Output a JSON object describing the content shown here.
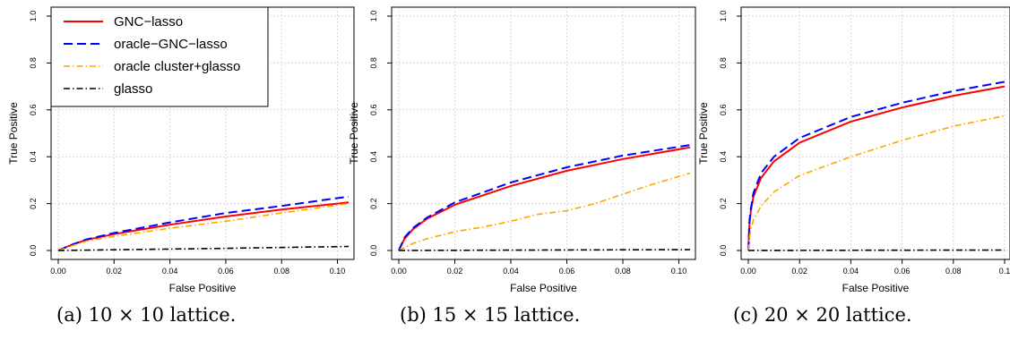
{
  "colors": {
    "gnc_lasso": "#ff0000",
    "oracle_gnc_lasso": "#0000ff",
    "oracle_cluster_glasso": "#ffa500",
    "glasso": "#000000"
  },
  "legend": {
    "placement": "top-left",
    "entries": [
      {
        "label": "GNC−lasso",
        "style": "solid",
        "color": "#ff0000"
      },
      {
        "label": "oracle−GNC−lasso",
        "style": "dashed",
        "color": "#0000ff"
      },
      {
        "label": "oracle cluster+glasso",
        "style": "dotdash",
        "color": "#ffa500"
      },
      {
        "label": "glasso",
        "style": "dotdash",
        "color": "#000000"
      }
    ]
  },
  "chart_data": [
    {
      "type": "line",
      "caption": "(a) 10 × 10 lattice.",
      "xlabel": "False Positive",
      "ylabel": "True Positive",
      "xlim": [
        0,
        0.104
      ],
      "ylim": [
        0,
        1.0
      ],
      "xticks": [
        "0.00",
        "0.02",
        "0.04",
        "0.06",
        "0.08",
        "0.10"
      ],
      "yticks": [
        "0.0",
        "0.2",
        "0.4",
        "0.6",
        "0.8",
        "1.0"
      ],
      "grid": true,
      "series": [
        {
          "name": "GNC−lasso",
          "x": [
            0,
            0.005,
            0.01,
            0.02,
            0.04,
            0.06,
            0.08,
            0.104
          ],
          "y": [
            0,
            0.025,
            0.045,
            0.07,
            0.11,
            0.145,
            0.175,
            0.205
          ]
        },
        {
          "name": "oracle−GNC−lasso",
          "x": [
            0,
            0.005,
            0.01,
            0.02,
            0.04,
            0.06,
            0.08,
            0.104
          ],
          "y": [
            0,
            0.025,
            0.047,
            0.075,
            0.12,
            0.16,
            0.19,
            0.23
          ]
        },
        {
          "name": "oracle cluster+glasso",
          "x": [
            0,
            0.005,
            0.01,
            0.02,
            0.04,
            0.06,
            0.08,
            0.104
          ],
          "y": [
            0,
            0.02,
            0.04,
            0.06,
            0.095,
            0.125,
            0.16,
            0.2
          ]
        },
        {
          "name": "glasso",
          "x": [
            0,
            0.02,
            0.04,
            0.06,
            0.08,
            0.104
          ],
          "y": [
            0,
            0.003,
            0.006,
            0.009,
            0.013,
            0.017
          ]
        }
      ]
    },
    {
      "type": "line",
      "caption": "(b) 15 × 15 lattice.",
      "xlabel": "False Positive",
      "ylabel": "True Positive",
      "xlim": [
        0,
        0.104
      ],
      "ylim": [
        0,
        1.0
      ],
      "xticks": [
        "0.00",
        "0.02",
        "0.04",
        "0.06",
        "0.08",
        "0.10"
      ],
      "yticks": [
        "0.0",
        "0.2",
        "0.4",
        "0.6",
        "0.8",
        "1.0"
      ],
      "grid": true,
      "series": [
        {
          "name": "GNC−lasso",
          "x": [
            0,
            0.002,
            0.005,
            0.01,
            0.02,
            0.04,
            0.06,
            0.08,
            0.104
          ],
          "y": [
            0,
            0.05,
            0.09,
            0.135,
            0.195,
            0.275,
            0.34,
            0.39,
            0.44
          ]
        },
        {
          "name": "oracle−GNC−lasso",
          "x": [
            0,
            0.002,
            0.005,
            0.01,
            0.02,
            0.04,
            0.06,
            0.08,
            0.104
          ],
          "y": [
            0,
            0.055,
            0.095,
            0.14,
            0.205,
            0.29,
            0.355,
            0.405,
            0.45
          ]
        },
        {
          "name": "oracle cluster+glasso",
          "x": [
            0,
            0.005,
            0.01,
            0.02,
            0.03,
            0.04,
            0.05,
            0.06,
            0.07,
            0.08,
            0.09,
            0.104
          ],
          "y": [
            0,
            0.03,
            0.05,
            0.08,
            0.1,
            0.125,
            0.155,
            0.17,
            0.2,
            0.24,
            0.28,
            0.33
          ]
        },
        {
          "name": "glasso",
          "x": [
            0,
            0.05,
            0.104
          ],
          "y": [
            0,
            0.002,
            0.004
          ]
        }
      ]
    },
    {
      "type": "line",
      "caption": "(c) 20 × 20 lattice.",
      "xlabel": "False Positive",
      "ylabel": "True Positive",
      "xlim": [
        0,
        0.1
      ],
      "ylim": [
        0,
        1.0
      ],
      "xticks": [
        "0.00",
        "0.02",
        "0.04",
        "0.06",
        "0.08",
        "0.1"
      ],
      "yticks": [
        "0.0",
        "0.2",
        "0.4",
        "0.6",
        "0.8",
        "1.0"
      ],
      "grid": true,
      "series": [
        {
          "name": "GNC−lasso",
          "x": [
            0,
            0.0005,
            0.001,
            0.002,
            0.005,
            0.01,
            0.02,
            0.04,
            0.06,
            0.08,
            0.1
          ],
          "y": [
            0,
            0.12,
            0.17,
            0.23,
            0.31,
            0.38,
            0.46,
            0.55,
            0.61,
            0.66,
            0.7
          ]
        },
        {
          "name": "oracle−GNC−lasso",
          "x": [
            0,
            0.0005,
            0.001,
            0.002,
            0.005,
            0.01,
            0.02,
            0.04,
            0.06,
            0.08,
            0.1
          ],
          "y": [
            0,
            0.13,
            0.18,
            0.245,
            0.33,
            0.4,
            0.48,
            0.57,
            0.63,
            0.68,
            0.72
          ]
        },
        {
          "name": "oracle cluster+glasso",
          "x": [
            0,
            0.0005,
            0.001,
            0.002,
            0.005,
            0.01,
            0.02,
            0.04,
            0.06,
            0.08,
            0.1
          ],
          "y": [
            0,
            0.06,
            0.09,
            0.13,
            0.19,
            0.25,
            0.32,
            0.4,
            0.47,
            0.53,
            0.575
          ]
        },
        {
          "name": "glasso",
          "x": [
            0,
            0.05,
            0.1
          ],
          "y": [
            0,
            0.001,
            0.002
          ]
        }
      ]
    }
  ]
}
